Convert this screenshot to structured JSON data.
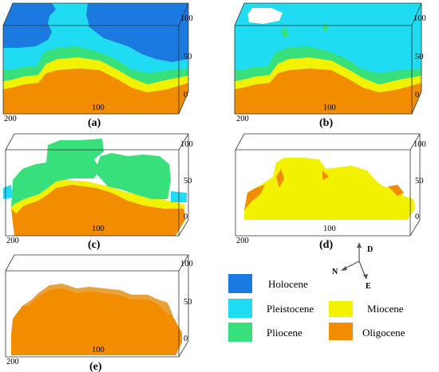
{
  "colors": {
    "holocene": "#1a7ae0",
    "pleistocene": "#1fdcf2",
    "pliocene": "#38e07c",
    "miocene": "#f2f200",
    "oligocene": "#f28c00"
  },
  "panels": [
    {
      "id": "a",
      "caption": "(a)",
      "axis_top": "100",
      "axis_mid": "50",
      "axis_zero": "0",
      "base_left": "200",
      "base_mid": "100"
    },
    {
      "id": "b",
      "caption": "(b)",
      "axis_top": "100",
      "axis_mid": "50",
      "axis_zero": "0",
      "base_left": "200",
      "base_mid": "100"
    },
    {
      "id": "c",
      "caption": "(c)",
      "axis_top": "100",
      "axis_mid": "50",
      "axis_zero": "0",
      "base_left": "200",
      "base_mid": "100"
    },
    {
      "id": "d",
      "caption": "(d)",
      "axis_top": "100",
      "axis_mid": "50",
      "axis_zero": "0",
      "base_left": "200",
      "base_mid": "100"
    },
    {
      "id": "e",
      "caption": "(e)",
      "axis_top": "100",
      "axis_mid": "50",
      "axis_zero": "0",
      "base_left": "200",
      "base_mid": "100"
    }
  ],
  "compass": {
    "d": "D",
    "n": "N",
    "e": "E"
  },
  "legend": [
    {
      "label": "Holocene",
      "color": "#1a7ae0"
    },
    {
      "label": "Pleistocene",
      "color": "#1fdcf2"
    },
    {
      "label": "Pliocene",
      "color": "#38e07c"
    },
    {
      "label": "Miocene",
      "color": "#f2f200"
    },
    {
      "label": "Oligocene",
      "color": "#f28c00"
    }
  ]
}
